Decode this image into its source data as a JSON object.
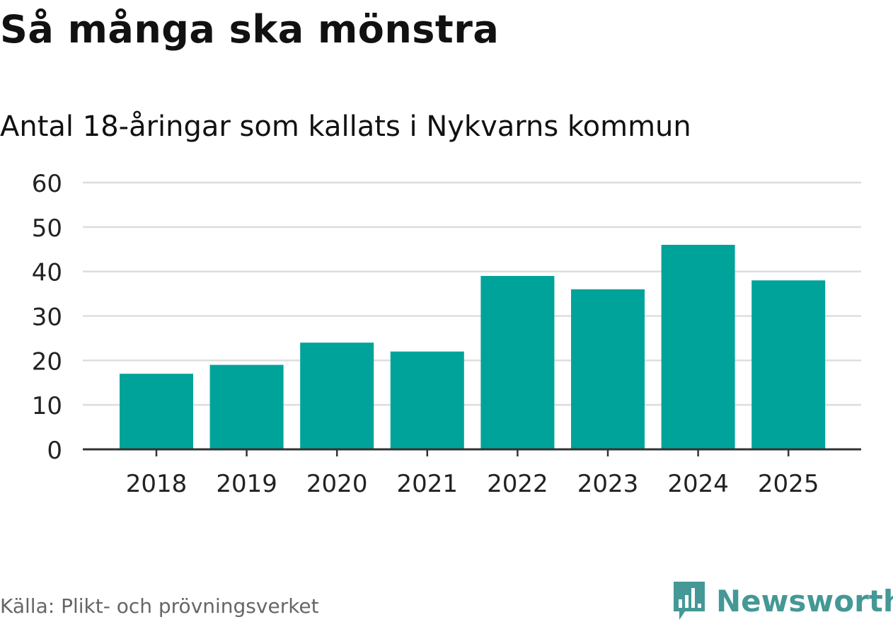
{
  "title": "Så många ska mönstra",
  "subtitle": "Antal 18-åringar som kallats i Nykvarns kommun",
  "source": "Källa: Plikt- och prövningsverket",
  "brand": {
    "name": "Newsworthy",
    "icon": "newsworthy-logo-icon",
    "color": "#449896"
  },
  "chart_data": {
    "type": "bar",
    "title": "Så många ska mönstra",
    "subtitle": "Antal 18-åringar som kallats i Nykvarns kommun",
    "categories": [
      "2018",
      "2019",
      "2020",
      "2021",
      "2022",
      "2023",
      "2024",
      "2025"
    ],
    "values": [
      17,
      19,
      24,
      22,
      39,
      36,
      46,
      38
    ],
    "yticks": [
      0,
      10,
      20,
      30,
      40,
      50,
      60
    ],
    "ylim": [
      0,
      60
    ],
    "xlabel": "",
    "ylabel": "",
    "grid": true,
    "bar_color": "#00a39a",
    "gridline_color": "#dddddd",
    "axis_color": "#333333"
  }
}
